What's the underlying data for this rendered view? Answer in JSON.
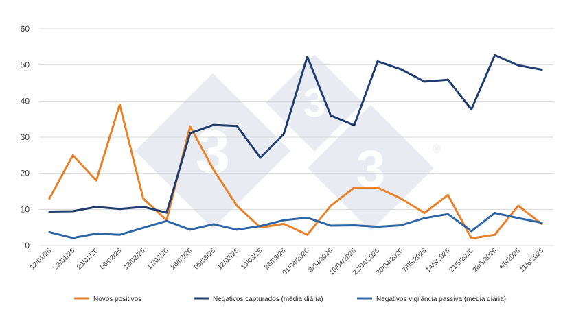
{
  "chart_data": {
    "type": "line",
    "ylim": [
      0,
      60
    ],
    "yticks": [
      0,
      10,
      20,
      30,
      40,
      50,
      60
    ],
    "grid": true,
    "legend_position": "bottom",
    "x": [
      "12/01/26",
      "23/01/26",
      "29/01/26",
      "06/02/26",
      "13/02/26",
      "17/02/26",
      "26/02/26",
      "05/03/26",
      "12/03/26",
      "19/03/26",
      "26/03/26",
      "01/04/2026",
      "8/04/2026",
      "16/04/2026",
      "22/04/2026",
      "30/04/2026",
      "7/05/2026",
      "14/5/2026",
      "21/5/2026",
      "28/5/2026",
      "4/6/2026",
      "11/6/2026"
    ],
    "series": [
      {
        "name": "Novos positivos",
        "color": "#e8822a",
        "values": [
          13,
          25,
          18,
          39,
          13,
          7,
          33,
          21,
          11,
          5,
          6,
          3,
          11,
          16,
          16,
          13,
          9,
          14,
          2,
          3,
          11,
          6
        ]
      },
      {
        "name": "Negativos capturados (média diária)",
        "color": "#1f3d6e",
        "values": [
          9.4,
          9.5,
          10.7,
          10.1,
          10.7,
          9.1,
          31.1,
          33.4,
          33.1,
          24.3,
          30.9,
          52.3,
          36,
          33.3,
          51,
          48.8,
          45.4,
          45.9,
          37.7,
          52.7,
          49.9,
          48.7
        ]
      },
      {
        "name": "Negativos vigilância passiva (média diária)",
        "color": "#2e65a3",
        "values": [
          3.7,
          2.1,
          3.3,
          3,
          4.9,
          6.8,
          4.4,
          5.9,
          4.4,
          5.4,
          7,
          7.7,
          5.5,
          5.6,
          5.2,
          5.6,
          7.6,
          8.7,
          4,
          9,
          7.6,
          6.3
        ]
      }
    ]
  },
  "watermark": {
    "text": "3",
    "symbol": "®"
  }
}
